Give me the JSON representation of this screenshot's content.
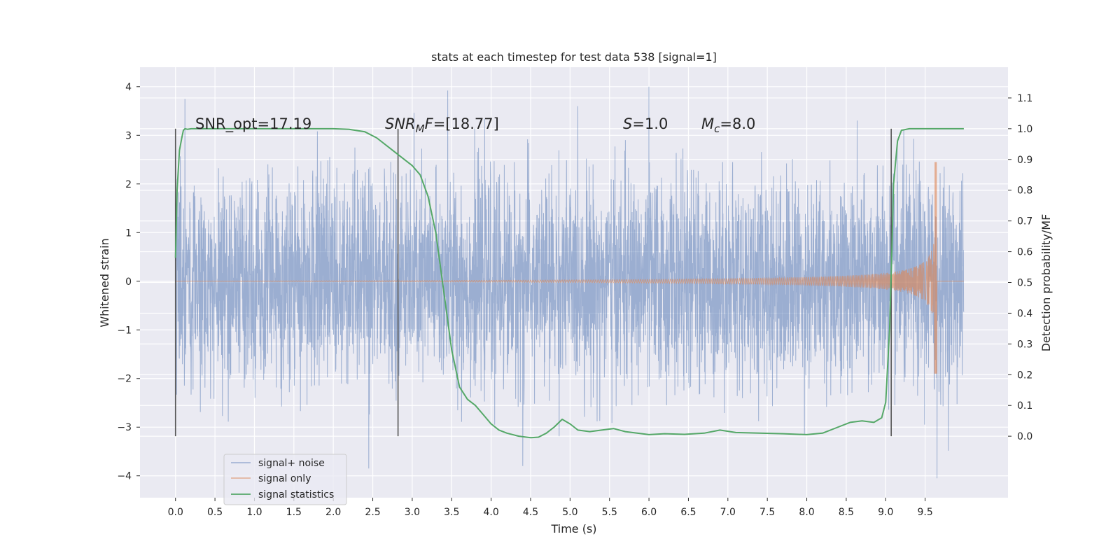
{
  "chart_data": {
    "type": "line",
    "title": "stats at each timestep for test data 538 [signal=1]",
    "xlabel": "Time (s)",
    "ylabel": "Whitened strain",
    "ylabel_right": "Detection probability/MF",
    "xlim": [
      -0.45,
      10.55
    ],
    "ylim": [
      -4.45,
      4.4
    ],
    "ylim_right": [
      -0.2,
      1.2
    ],
    "grid": true,
    "legend_position": "lower-left",
    "x_ticks": [
      "0.0",
      "0.5",
      "1.0",
      "1.5",
      "2.0",
      "2.5",
      "3.0",
      "3.5",
      "4.0",
      "4.5",
      "5.0",
      "5.5",
      "6.0",
      "6.5",
      "7.0",
      "7.5",
      "8.0",
      "8.5",
      "9.0",
      "9.5"
    ],
    "y_ticks": [
      "−4",
      "−3",
      "−2",
      "−1",
      "0",
      "1",
      "2",
      "3",
      "4"
    ],
    "y_ticks_right": [
      "0.0",
      "0.1",
      "0.2",
      "0.3",
      "0.4",
      "0.5",
      "0.6",
      "0.7",
      "0.8",
      "0.9",
      "1.0",
      "1.1"
    ],
    "annotations": {
      "snr_opt": "SNR_opt=17.19",
      "snr_mf_base": "SNR",
      "snr_mf_sub": "M",
      "snr_mf_rest": "F=[18.77]",
      "s_var": "S",
      "s_val": "=1.0",
      "mc_var": "M",
      "mc_sub": "c",
      "mc_val": "=8.0"
    },
    "vlines": [
      0.0,
      2.82,
      9.07
    ],
    "series": [
      {
        "name": "signal+ noise",
        "color": "#4c72b0",
        "description_note": "",
        "time_range": [
          0.0,
          9.99
        ],
        "sample_rate": 409.6,
        "envelope_std": 1.05,
        "peak_values": [
          [
            0.12,
            3.75
          ],
          [
            3.45,
            3.92
          ],
          [
            6.0,
            4.0
          ],
          [
            9.65,
            -4.05
          ],
          [
            4.4,
            -3.8
          ],
          [
            2.45,
            -3.85
          ]
        ]
      },
      {
        "name": "signal only",
        "color": "#dd8452",
        "time_range": [
          0.0,
          9.99
        ],
        "chirp_start_amplitude": 0.02,
        "chirp_merger_time": 9.65,
        "chirp_peak_amplitude": 2.45,
        "chirp_min_amplitude": -1.9
      },
      {
        "name": "signal statistics",
        "color": "#55a868",
        "axis": "right",
        "x": [
          0.0,
          0.02,
          0.05,
          0.08,
          0.1,
          0.12,
          0.15,
          0.2,
          0.3,
          0.5,
          1.0,
          1.5,
          2.0,
          2.2,
          2.4,
          2.55,
          2.7,
          2.85,
          3.0,
          3.1,
          3.2,
          3.3,
          3.4,
          3.5,
          3.6,
          3.7,
          3.8,
          3.9,
          4.0,
          4.1,
          4.2,
          4.35,
          4.5,
          4.6,
          4.7,
          4.8,
          4.9,
          5.0,
          5.1,
          5.25,
          5.4,
          5.55,
          5.7,
          5.85,
          6.0,
          6.2,
          6.45,
          6.7,
          6.9,
          7.1,
          7.4,
          7.7,
          8.0,
          8.2,
          8.4,
          8.55,
          8.7,
          8.85,
          8.95,
          9.0,
          9.05,
          9.08,
          9.1,
          9.15,
          9.2,
          9.3,
          9.5,
          9.7,
          9.9,
          9.99
        ],
        "y": [
          0.58,
          0.8,
          0.93,
          0.97,
          0.995,
          1.0,
          0.998,
          1.0,
          1.0,
          1.0,
          1.0,
          1.0,
          1.0,
          0.998,
          0.99,
          0.97,
          0.94,
          0.91,
          0.88,
          0.85,
          0.78,
          0.66,
          0.47,
          0.28,
          0.16,
          0.12,
          0.1,
          0.07,
          0.04,
          0.02,
          0.01,
          0.0,
          -0.005,
          -0.003,
          0.01,
          0.03,
          0.055,
          0.04,
          0.02,
          0.015,
          0.02,
          0.025,
          0.015,
          0.01,
          0.005,
          0.008,
          0.006,
          0.01,
          0.02,
          0.012,
          0.01,
          0.008,
          0.005,
          0.01,
          0.03,
          0.045,
          0.05,
          0.045,
          0.06,
          0.11,
          0.35,
          0.62,
          0.82,
          0.96,
          0.995,
          1.0,
          1.0,
          1.0,
          1.0,
          1.0
        ]
      }
    ]
  }
}
